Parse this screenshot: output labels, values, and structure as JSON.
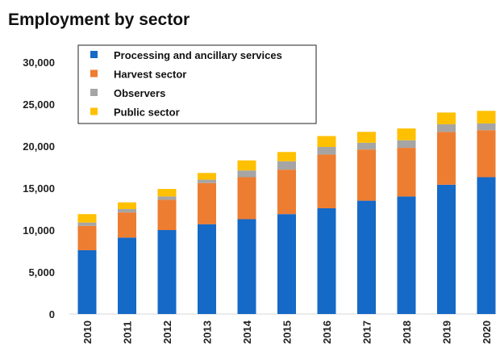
{
  "chart_data": {
    "type": "bar",
    "stacked": true,
    "title": "Employment by sector",
    "xlabel": "",
    "ylabel": "",
    "ylim": [
      0,
      30000
    ],
    "yticks": [
      "0",
      "5,000",
      "10,000",
      "15,000",
      "20,000",
      "25,000",
      "30,000"
    ],
    "categories": [
      "2010",
      "2011",
      "2012",
      "2013",
      "2014",
      "2015",
      "2016",
      "2017",
      "2018",
      "2019",
      "2020"
    ],
    "series": [
      {
        "name": "Processing and ancillary services",
        "color": "#1569c7",
        "values": [
          7600,
          9100,
          10000,
          10700,
          11300,
          11900,
          12600,
          13500,
          14000,
          15400,
          16300
        ]
      },
      {
        "name": "Harvest sector",
        "color": "#ed7d31",
        "values": [
          2900,
          3000,
          3600,
          4900,
          5000,
          5300,
          6400,
          6100,
          5800,
          6300,
          5600
        ]
      },
      {
        "name": "Observers",
        "color": "#a5a5a5",
        "values": [
          400,
          400,
          400,
          400,
          800,
          1000,
          900,
          800,
          900,
          900,
          800
        ]
      },
      {
        "name": "Public sector",
        "color": "#ffc000",
        "values": [
          1000,
          800,
          900,
          800,
          1200,
          1100,
          1300,
          1300,
          1400,
          1400,
          1500
        ]
      }
    ],
    "legend_position": "top-left",
    "grid": false
  }
}
